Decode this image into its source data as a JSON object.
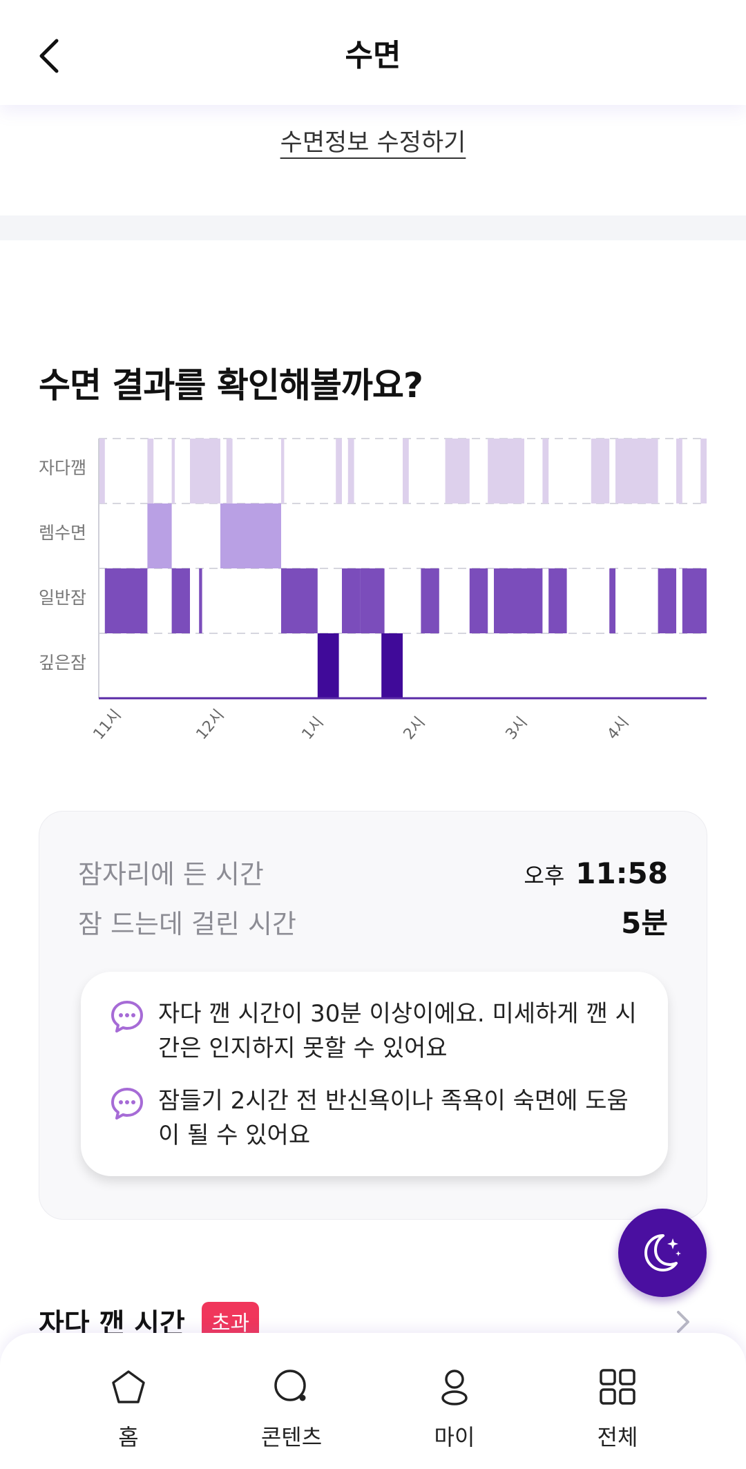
{
  "header": {
    "title": "수면"
  },
  "edit_link": "수면정보 수정하기",
  "section_title": "수면 결과를 확인해볼까요?",
  "chart_data": {
    "type": "timeline",
    "y_categories": [
      "자다깸",
      "렘수면",
      "일반잠",
      "깊은잠"
    ],
    "x_ticks": [
      "11시",
      "12시",
      "1시",
      "2시",
      "3시",
      "4시"
    ],
    "colors": {
      "자다깸": "#ddd0ec",
      "렘수면": "#b9a0e4",
      "일반잠": "#7b4dbb",
      "깊은잠": "#400a99"
    },
    "segments": [
      {
        "stage": "자다깸",
        "start": 0.0,
        "end": 0.01
      },
      {
        "stage": "자다깸",
        "start": 0.08,
        "end": 0.09
      },
      {
        "stage": "자다깸",
        "start": 0.12,
        "end": 0.125
      },
      {
        "stage": "자다깸",
        "start": 0.15,
        "end": 0.2
      },
      {
        "stage": "자다깸",
        "start": 0.21,
        "end": 0.22
      },
      {
        "stage": "자다깸",
        "start": 0.3,
        "end": 0.305
      },
      {
        "stage": "자다깸",
        "start": 0.39,
        "end": 0.4
      },
      {
        "stage": "자다깸",
        "start": 0.41,
        "end": 0.42
      },
      {
        "stage": "자다깸",
        "start": 0.5,
        "end": 0.51
      },
      {
        "stage": "자다깸",
        "start": 0.57,
        "end": 0.61
      },
      {
        "stage": "자다깸",
        "start": 0.64,
        "end": 0.7
      },
      {
        "stage": "자다깸",
        "start": 0.73,
        "end": 0.74
      },
      {
        "stage": "자다깸",
        "start": 0.81,
        "end": 0.84
      },
      {
        "stage": "자다깸",
        "start": 0.85,
        "end": 0.92
      },
      {
        "stage": "자다깸",
        "start": 0.95,
        "end": 0.96
      },
      {
        "stage": "자다깸",
        "start": 0.99,
        "end": 1.0
      },
      {
        "stage": "렘수면",
        "start": 0.08,
        "end": 0.12
      },
      {
        "stage": "렘수면",
        "start": 0.2,
        "end": 0.3
      },
      {
        "stage": "일반잠",
        "start": 0.01,
        "end": 0.08
      },
      {
        "stage": "일반잠",
        "start": 0.12,
        "end": 0.15
      },
      {
        "stage": "일반잠",
        "start": 0.165,
        "end": 0.17
      },
      {
        "stage": "일반잠",
        "start": 0.3,
        "end": 0.36
      },
      {
        "stage": "일반잠",
        "start": 0.4,
        "end": 0.43
      },
      {
        "stage": "일반잠",
        "start": 0.43,
        "end": 0.47
      },
      {
        "stage": "일반잠",
        "start": 0.53,
        "end": 0.56
      },
      {
        "stage": "일반잠",
        "start": 0.61,
        "end": 0.64
      },
      {
        "stage": "일반잠",
        "start": 0.65,
        "end": 0.73
      },
      {
        "stage": "일반잠",
        "start": 0.74,
        "end": 0.77
      },
      {
        "stage": "일반잠",
        "start": 0.84,
        "end": 0.85
      },
      {
        "stage": "일반잠",
        "start": 0.92,
        "end": 0.95
      },
      {
        "stage": "일반잠",
        "start": 0.96,
        "end": 1.0
      },
      {
        "stage": "깊은잠",
        "start": 0.36,
        "end": 0.395
      },
      {
        "stage": "깊은잠",
        "start": 0.465,
        "end": 0.5
      }
    ]
  },
  "info": {
    "bed_time_label": "잠자리에 든 시간",
    "bed_time_ampm": "오후",
    "bed_time_value": "11:58",
    "fall_asleep_label": "잠 드는데 걸린 시간",
    "fall_asleep_value": "5분"
  },
  "tips": [
    "자다 깬 시간이 30분 이상이에요. 미세하게 깬 시간은 인지하지 못할 수 있어요",
    "잠들기 2시간 전 반신욕이나 족욕이 숙면에 도움이 될 수 있어요"
  ],
  "section2": {
    "title": "자다 깬 시간",
    "badge": "초과"
  },
  "nav": [
    {
      "label": "홈",
      "icon": "home-icon"
    },
    {
      "label": "콘텐츠",
      "icon": "search-icon"
    },
    {
      "label": "마이",
      "icon": "person-icon"
    },
    {
      "label": "전체",
      "icon": "grid-icon"
    }
  ],
  "fab_icon": "moon-sparkle-icon",
  "accent_color": "#4a0fa0",
  "badge_color": "#f0365b"
}
